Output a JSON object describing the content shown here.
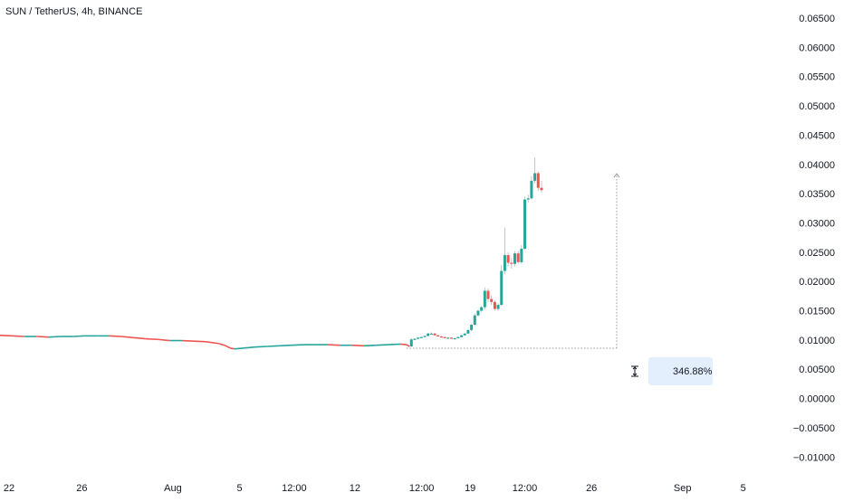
{
  "header": {
    "symbol_title": "SUN / TetherUS, 4h, BINANCE"
  },
  "colors": {
    "up": "#26a69a",
    "down": "#ef5350",
    "wick": "#b2b5be",
    "axis_text": "#131722",
    "measure_line": "#9598a1",
    "measure_bg": "#e3effd"
  },
  "measure": {
    "label": "346.88%",
    "icon": "range-measure-icon"
  },
  "chart_data": {
    "type": "candlestick",
    "title": "SUN / TetherUS, 4h, BINANCE",
    "ylim": [
      -0.012,
      0.0665
    ],
    "y_ticks": [
      "0.06500",
      "0.06000",
      "0.05500",
      "0.05000",
      "0.04500",
      "0.04000",
      "0.03500",
      "0.03000",
      "0.02500",
      "0.02000",
      "0.01500",
      "0.01000",
      "0.00500",
      "0.00000",
      "−0.00500",
      "−0.01000"
    ],
    "y_tick_values": [
      0.065,
      0.06,
      0.055,
      0.05,
      0.045,
      0.04,
      0.035,
      0.03,
      0.025,
      0.02,
      0.015,
      0.01,
      0.005,
      0.0,
      -0.005,
      -0.01
    ],
    "x_ticks": [
      "22",
      "26",
      "Aug",
      "5",
      "12:00",
      "12",
      "12:00",
      "19",
      "12:00",
      "26",
      "Sep",
      "5"
    ],
    "x_tick_positions": [
      0,
      24,
      54,
      76,
      94,
      114,
      136,
      152,
      170,
      192,
      222,
      242
    ],
    "price_series": [
      [
        0,
        0.0108
      ],
      [
        4,
        0.0107
      ],
      [
        8,
        0.0106
      ],
      [
        12,
        0.0106
      ],
      [
        16,
        0.0105
      ],
      [
        20,
        0.0106
      ],
      [
        24,
        0.0106
      ],
      [
        28,
        0.0107
      ],
      [
        32,
        0.0107
      ],
      [
        36,
        0.0107
      ],
      [
        40,
        0.0106
      ],
      [
        44,
        0.0104
      ],
      [
        48,
        0.0102
      ],
      [
        52,
        0.0101
      ],
      [
        56,
        0.0099
      ],
      [
        60,
        0.0099
      ],
      [
        64,
        0.0098
      ],
      [
        68,
        0.0097
      ],
      [
        72,
        0.0094
      ],
      [
        74,
        0.0091
      ],
      [
        76,
        0.0086
      ],
      [
        77,
        0.0085
      ],
      [
        78,
        0.0085
      ],
      [
        80,
        0.0086
      ],
      [
        84,
        0.0088
      ],
      [
        88,
        0.0089
      ],
      [
        92,
        0.009
      ],
      [
        96,
        0.0091
      ],
      [
        100,
        0.0092
      ],
      [
        104,
        0.0092
      ],
      [
        108,
        0.0092
      ],
      [
        112,
        0.0091
      ],
      [
        116,
        0.0091
      ],
      [
        120,
        0.009
      ],
      [
        124,
        0.0091
      ],
      [
        128,
        0.0092
      ],
      [
        132,
        0.0093
      ],
      [
        134,
        0.0092
      ],
      [
        135,
        0.0089
      ]
    ],
    "candles": [
      {
        "t": 135.6,
        "o": 0.0089,
        "h": 0.0103,
        "l": 0.0088,
        "c": 0.0101
      },
      {
        "t": 136.7,
        "o": 0.0101,
        "h": 0.0103,
        "l": 0.01,
        "c": 0.0102
      },
      {
        "t": 137.8,
        "o": 0.0102,
        "h": 0.0104,
        "l": 0.0101,
        "c": 0.0104
      },
      {
        "t": 138.9,
        "o": 0.0104,
        "h": 0.0106,
        "l": 0.0103,
        "c": 0.0105
      },
      {
        "t": 140.0,
        "o": 0.0105,
        "h": 0.0108,
        "l": 0.0104,
        "c": 0.0107
      },
      {
        "t": 141.1,
        "o": 0.0107,
        "h": 0.0112,
        "l": 0.0106,
        "c": 0.0111
      },
      {
        "t": 142.2,
        "o": 0.0111,
        "h": 0.0113,
        "l": 0.011,
        "c": 0.0111
      },
      {
        "t": 143.3,
        "o": 0.0111,
        "h": 0.0112,
        "l": 0.0108,
        "c": 0.0108
      },
      {
        "t": 144.4,
        "o": 0.0108,
        "h": 0.0109,
        "l": 0.0106,
        "c": 0.0106
      },
      {
        "t": 145.5,
        "o": 0.0106,
        "h": 0.0107,
        "l": 0.0104,
        "c": 0.0105
      },
      {
        "t": 146.6,
        "o": 0.0105,
        "h": 0.0106,
        "l": 0.0104,
        "c": 0.0104
      },
      {
        "t": 147.7,
        "o": 0.0104,
        "h": 0.0105,
        "l": 0.0103,
        "c": 0.0104
      },
      {
        "t": 148.8,
        "o": 0.0104,
        "h": 0.0105,
        "l": 0.0103,
        "c": 0.0103
      },
      {
        "t": 149.9,
        "o": 0.0103,
        "h": 0.0104,
        "l": 0.0102,
        "c": 0.0103
      },
      {
        "t": 151.0,
        "o": 0.0103,
        "h": 0.0106,
        "l": 0.0102,
        "c": 0.0105
      },
      {
        "t": 152.1,
        "o": 0.0105,
        "h": 0.0109,
        "l": 0.0104,
        "c": 0.0108
      },
      {
        "t": 153.2,
        "o": 0.0108,
        "h": 0.0112,
        "l": 0.0107,
        "c": 0.0111
      },
      {
        "t": 154.3,
        "o": 0.0111,
        "h": 0.0118,
        "l": 0.011,
        "c": 0.0117
      },
      {
        "t": 155.4,
        "o": 0.0117,
        "h": 0.0128,
        "l": 0.0115,
        "c": 0.0126
      },
      {
        "t": 156.5,
        "o": 0.0126,
        "h": 0.0145,
        "l": 0.0124,
        "c": 0.0142
      },
      {
        "t": 157.6,
        "o": 0.0142,
        "h": 0.0152,
        "l": 0.014,
        "c": 0.015
      },
      {
        "t": 158.7,
        "o": 0.015,
        "h": 0.0158,
        "l": 0.0148,
        "c": 0.0156
      },
      {
        "t": 159.8,
        "o": 0.0156,
        "h": 0.019,
        "l": 0.0152,
        "c": 0.0184
      },
      {
        "t": 160.9,
        "o": 0.0184,
        "h": 0.0188,
        "l": 0.0165,
        "c": 0.017
      },
      {
        "t": 162.0,
        "o": 0.017,
        "h": 0.0176,
        "l": 0.016,
        "c": 0.0165
      },
      {
        "t": 163.1,
        "o": 0.0165,
        "h": 0.0168,
        "l": 0.015,
        "c": 0.0153
      },
      {
        "t": 164.2,
        "o": 0.0153,
        "h": 0.0163,
        "l": 0.015,
        "c": 0.016
      },
      {
        "t": 165.3,
        "o": 0.016,
        "h": 0.0228,
        "l": 0.0158,
        "c": 0.0218
      },
      {
        "t": 166.4,
        "o": 0.0218,
        "h": 0.0292,
        "l": 0.0212,
        "c": 0.0245
      },
      {
        "t": 167.5,
        "o": 0.0245,
        "h": 0.025,
        "l": 0.0226,
        "c": 0.0232
      },
      {
        "t": 168.6,
        "o": 0.0232,
        "h": 0.024,
        "l": 0.0222,
        "c": 0.023
      },
      {
        "t": 169.7,
        "o": 0.023,
        "h": 0.0252,
        "l": 0.0226,
        "c": 0.0248
      },
      {
        "t": 170.8,
        "o": 0.0248,
        "h": 0.0252,
        "l": 0.023,
        "c": 0.0233
      },
      {
        "t": 171.9,
        "o": 0.0233,
        "h": 0.0262,
        "l": 0.023,
        "c": 0.0256
      },
      {
        "t": 173.0,
        "o": 0.0256,
        "h": 0.0345,
        "l": 0.0254,
        "c": 0.034
      },
      {
        "t": 174.1,
        "o": 0.034,
        "h": 0.0348,
        "l": 0.0335,
        "c": 0.0342
      },
      {
        "t": 175.2,
        "o": 0.0342,
        "h": 0.038,
        "l": 0.034,
        "c": 0.0372
      },
      {
        "t": 176.3,
        "o": 0.0372,
        "h": 0.0412,
        "l": 0.0368,
        "c": 0.0385
      },
      {
        "t": 177.4,
        "o": 0.0385,
        "h": 0.0388,
        "l": 0.0355,
        "c": 0.036
      },
      {
        "t": 178.5,
        "o": 0.036,
        "h": 0.0372,
        "l": 0.0352,
        "c": 0.0356
      }
    ],
    "measure_range": {
      "from": 0.0086,
      "to": 0.0384,
      "change_pct": 346.88,
      "t": 200
    }
  }
}
